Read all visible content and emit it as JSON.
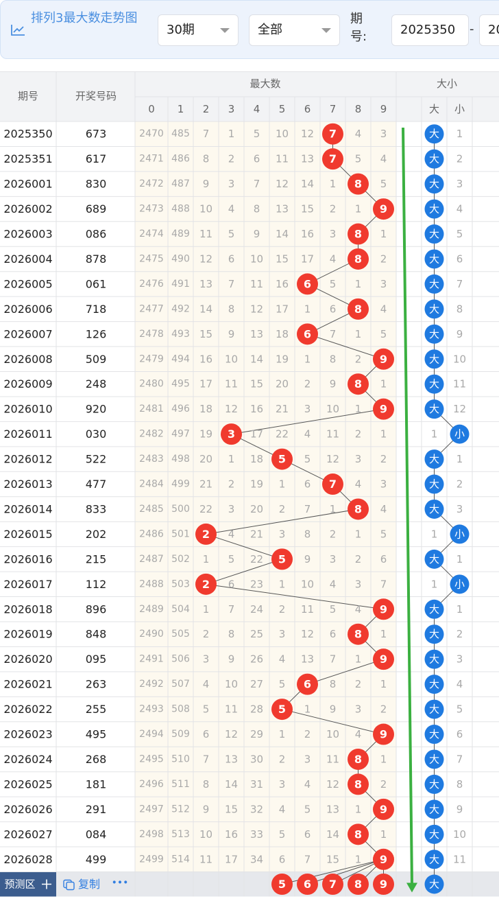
{
  "toolbar": {
    "title": "排列3最大数走势图",
    "period": "30期",
    "filter": "全部",
    "issue_label": "期号:",
    "from": "2025350",
    "separator": "-",
    "to": "20"
  },
  "table": {
    "header": {
      "issue": "期号",
      "number": "开奖号码",
      "max_group": "最大数",
      "size_group": "大小",
      "digits": [
        0,
        1,
        2,
        3,
        4,
        5,
        6,
        7,
        8,
        9
      ],
      "size_cols": [
        "大",
        "小"
      ]
    },
    "rows": [
      {
        "issue": "2025350",
        "number": "673",
        "cells": [
          2470,
          485,
          7,
          1,
          5,
          10,
          12,
          {
            "ball": 7
          },
          4,
          3
        ],
        "size": [
          {
            "ball": "大"
          },
          1
        ]
      },
      {
        "issue": "2025351",
        "number": "617",
        "cells": [
          2471,
          486,
          8,
          2,
          6,
          11,
          13,
          {
            "ball": 7
          },
          5,
          4
        ],
        "size": [
          {
            "ball": "大"
          },
          2
        ]
      },
      {
        "issue": "2026001",
        "number": "830",
        "cells": [
          2472,
          487,
          9,
          3,
          7,
          12,
          14,
          1,
          {
            "ball": 8
          },
          5
        ],
        "size": [
          {
            "ball": "大"
          },
          3
        ]
      },
      {
        "issue": "2026002",
        "number": "689",
        "cells": [
          2473,
          488,
          10,
          4,
          8,
          13,
          15,
          2,
          1,
          {
            "ball": 9
          }
        ],
        "size": [
          {
            "ball": "大"
          },
          4
        ]
      },
      {
        "issue": "2026003",
        "number": "086",
        "cells": [
          2474,
          489,
          11,
          5,
          9,
          14,
          16,
          3,
          {
            "ball": 8
          },
          1
        ],
        "size": [
          {
            "ball": "大"
          },
          5
        ]
      },
      {
        "issue": "2026004",
        "number": "878",
        "cells": [
          2475,
          490,
          12,
          6,
          10,
          15,
          17,
          4,
          {
            "ball": 8
          },
          2
        ],
        "size": [
          {
            "ball": "大"
          },
          6
        ]
      },
      {
        "issue": "2026005",
        "number": "061",
        "cells": [
          2476,
          491,
          13,
          7,
          11,
          16,
          {
            "ball": 6
          },
          5,
          1,
          3
        ],
        "size": [
          {
            "ball": "大"
          },
          7
        ]
      },
      {
        "issue": "2026006",
        "number": "718",
        "cells": [
          2477,
          492,
          14,
          8,
          12,
          17,
          1,
          6,
          {
            "ball": 8
          },
          4
        ],
        "size": [
          {
            "ball": "大"
          },
          8
        ]
      },
      {
        "issue": "2026007",
        "number": "126",
        "cells": [
          2478,
          493,
          15,
          9,
          13,
          18,
          {
            "ball": 6
          },
          7,
          1,
          5
        ],
        "size": [
          {
            "ball": "大"
          },
          9
        ]
      },
      {
        "issue": "2026008",
        "number": "509",
        "cells": [
          2479,
          494,
          16,
          10,
          14,
          19,
          1,
          8,
          2,
          {
            "ball": 9
          }
        ],
        "size": [
          {
            "ball": "大"
          },
          10
        ]
      },
      {
        "issue": "2026009",
        "number": "248",
        "cells": [
          2480,
          495,
          17,
          11,
          15,
          20,
          2,
          9,
          {
            "ball": 8
          },
          1
        ],
        "size": [
          {
            "ball": "大"
          },
          11
        ]
      },
      {
        "issue": "2026010",
        "number": "920",
        "cells": [
          2481,
          496,
          18,
          12,
          16,
          21,
          3,
          10,
          1,
          {
            "ball": 9
          }
        ],
        "size": [
          {
            "ball": "大"
          },
          12
        ]
      },
      {
        "issue": "2026011",
        "number": "030",
        "cells": [
          2482,
          497,
          19,
          {
            "ball": 3
          },
          17,
          22,
          4,
          11,
          2,
          1
        ],
        "size": [
          1,
          {
            "ball": "小"
          }
        ]
      },
      {
        "issue": "2026012",
        "number": "522",
        "cells": [
          2483,
          498,
          20,
          1,
          18,
          {
            "ball": 5
          },
          5,
          12,
          3,
          2
        ],
        "size": [
          {
            "ball": "大"
          },
          1
        ]
      },
      {
        "issue": "2026013",
        "number": "477",
        "cells": [
          2484,
          499,
          21,
          2,
          19,
          1,
          6,
          {
            "ball": 7
          },
          4,
          3
        ],
        "size": [
          {
            "ball": "大"
          },
          2
        ]
      },
      {
        "issue": "2026014",
        "number": "833",
        "cells": [
          2485,
          500,
          22,
          3,
          20,
          2,
          7,
          1,
          {
            "ball": 8
          },
          4
        ],
        "size": [
          {
            "ball": "大"
          },
          3
        ]
      },
      {
        "issue": "2026015",
        "number": "202",
        "cells": [
          2486,
          501,
          {
            "ball": 2
          },
          4,
          21,
          3,
          8,
          2,
          1,
          5
        ],
        "size": [
          1,
          {
            "ball": "小"
          }
        ]
      },
      {
        "issue": "2026016",
        "number": "215",
        "cells": [
          2487,
          502,
          1,
          5,
          22,
          {
            "ball": 5
          },
          9,
          3,
          2,
          6
        ],
        "size": [
          {
            "ball": "大"
          },
          1
        ]
      },
      {
        "issue": "2026017",
        "number": "112",
        "cells": [
          2488,
          503,
          {
            "ball": 2
          },
          6,
          23,
          1,
          10,
          4,
          3,
          7
        ],
        "size": [
          1,
          {
            "ball": "小"
          }
        ]
      },
      {
        "issue": "2026018",
        "number": "896",
        "cells": [
          2489,
          504,
          1,
          7,
          24,
          2,
          11,
          5,
          4,
          {
            "ball": 9
          }
        ],
        "size": [
          {
            "ball": "大"
          },
          1
        ]
      },
      {
        "issue": "2026019",
        "number": "848",
        "cells": [
          2490,
          505,
          2,
          8,
          25,
          3,
          12,
          6,
          {
            "ball": 8
          },
          1
        ],
        "size": [
          {
            "ball": "大"
          },
          2
        ]
      },
      {
        "issue": "2026020",
        "number": "095",
        "cells": [
          2491,
          506,
          3,
          9,
          26,
          4,
          13,
          7,
          1,
          {
            "ball": 9
          }
        ],
        "size": [
          {
            "ball": "大"
          },
          3
        ]
      },
      {
        "issue": "2026021",
        "number": "263",
        "cells": [
          2492,
          507,
          4,
          10,
          27,
          5,
          {
            "ball": 6
          },
          8,
          2,
          1
        ],
        "size": [
          {
            "ball": "大"
          },
          4
        ]
      },
      {
        "issue": "2026022",
        "number": "255",
        "cells": [
          2493,
          508,
          5,
          11,
          28,
          {
            "ball": 5
          },
          1,
          9,
          3,
          2
        ],
        "size": [
          {
            "ball": "大"
          },
          5
        ]
      },
      {
        "issue": "2026023",
        "number": "495",
        "cells": [
          2494,
          509,
          6,
          12,
          29,
          1,
          2,
          10,
          4,
          {
            "ball": 9
          }
        ],
        "size": [
          {
            "ball": "大"
          },
          6
        ]
      },
      {
        "issue": "2026024",
        "number": "268",
        "cells": [
          2495,
          510,
          7,
          13,
          30,
          2,
          3,
          11,
          {
            "ball": 8
          },
          1
        ],
        "size": [
          {
            "ball": "大"
          },
          7
        ]
      },
      {
        "issue": "2026025",
        "number": "181",
        "cells": [
          2496,
          511,
          8,
          14,
          31,
          3,
          4,
          12,
          {
            "ball": 8
          },
          2
        ],
        "size": [
          {
            "ball": "大"
          },
          8
        ]
      },
      {
        "issue": "2026026",
        "number": "291",
        "cells": [
          2497,
          512,
          9,
          15,
          32,
          4,
          5,
          13,
          1,
          {
            "ball": 9
          }
        ],
        "size": [
          {
            "ball": "大"
          },
          9
        ]
      },
      {
        "issue": "2026027",
        "number": "084",
        "cells": [
          2498,
          513,
          10,
          16,
          33,
          5,
          6,
          14,
          {
            "ball": 8
          },
          1
        ],
        "size": [
          {
            "ball": "大"
          },
          10
        ]
      },
      {
        "issue": "2026028",
        "number": "499",
        "cells": [
          2499,
          514,
          11,
          17,
          34,
          6,
          7,
          15,
          1,
          {
            "ball": 9
          }
        ],
        "size": [
          {
            "ball": "大"
          },
          11
        ]
      }
    ],
    "predict": {
      "label": "预测区",
      "copy": "复制",
      "more": "•••",
      "cells": [
        null,
        null,
        null,
        null,
        null,
        {
          "ball": 5
        },
        {
          "ball": 6
        },
        {
          "ball": 7
        },
        {
          "ball": 8
        },
        {
          "ball": 9
        }
      ],
      "size": [
        {
          "ball": "大"
        },
        null
      ]
    }
  }
}
